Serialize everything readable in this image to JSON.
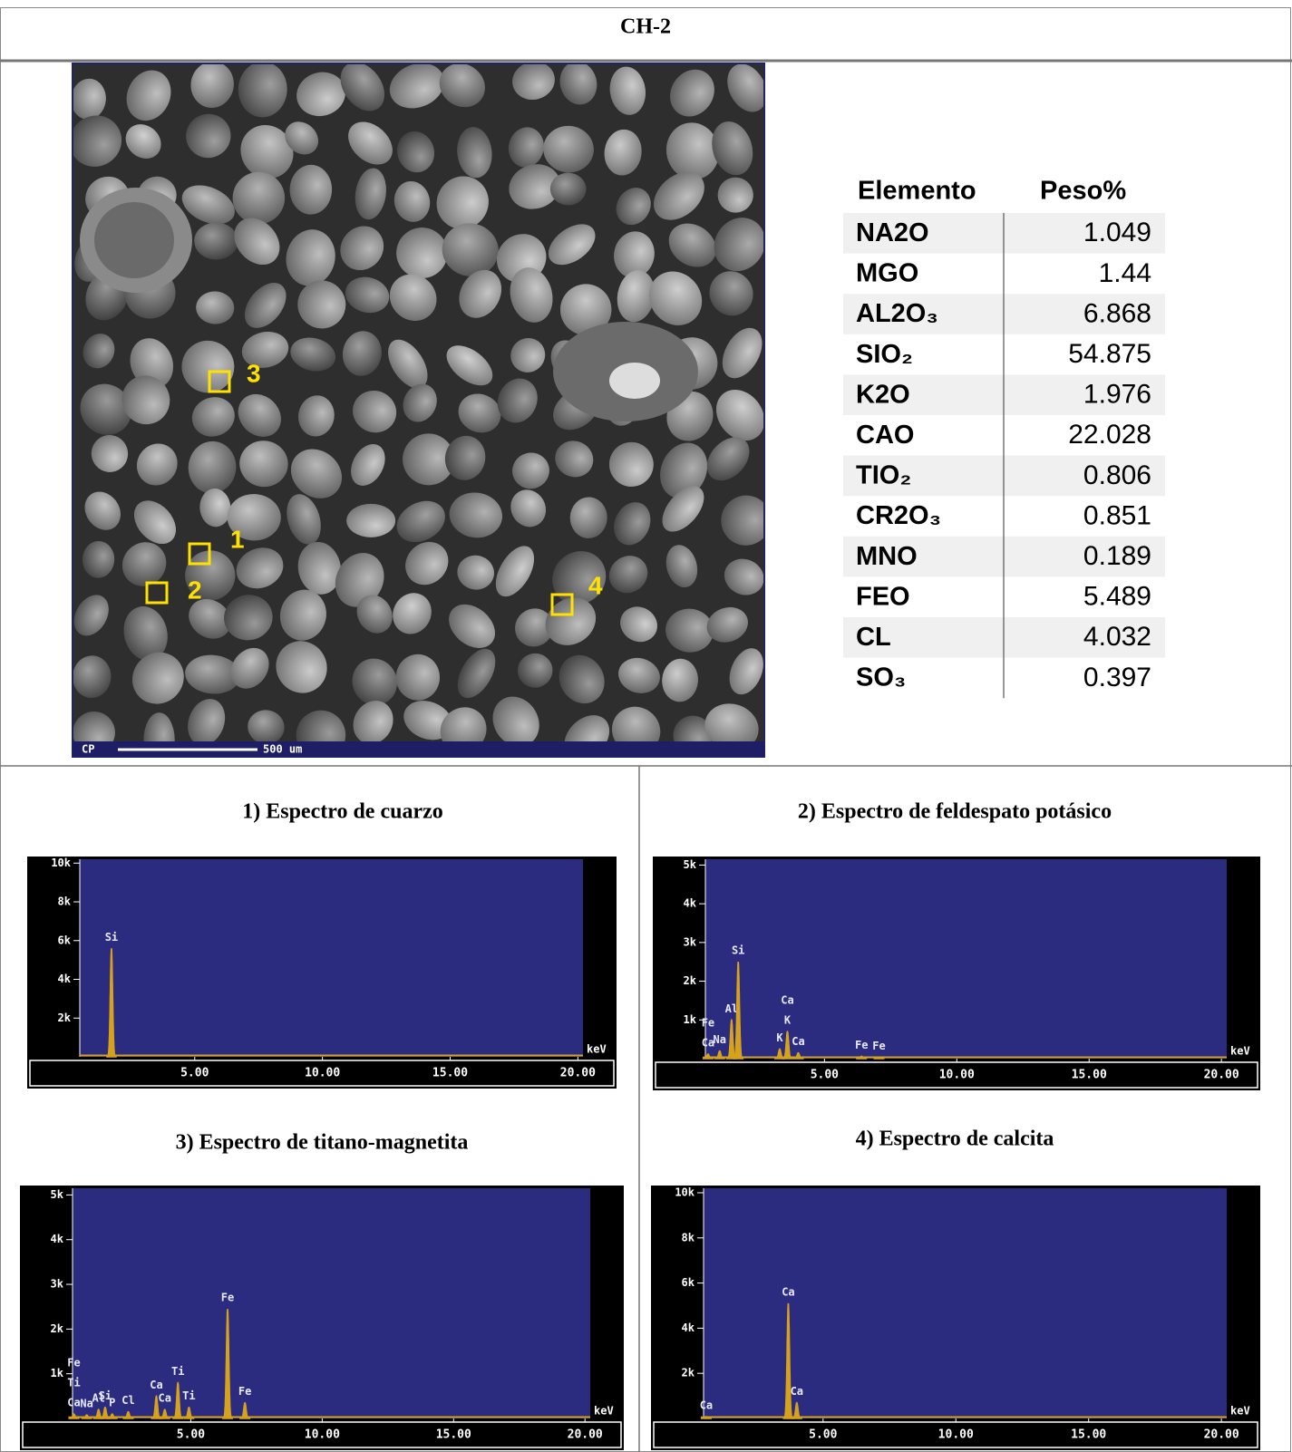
{
  "header": {
    "title": "CH-2"
  },
  "image": {
    "markers": [
      "1",
      "2",
      "3",
      "4"
    ],
    "bar_left": "CP",
    "scale": "500 um"
  },
  "table": {
    "columns": [
      "Elemento",
      "Peso%"
    ],
    "rows": [
      [
        "NA2O",
        1.049
      ],
      [
        "MGO",
        1.44
      ],
      [
        "AL2O₃",
        6.868
      ],
      [
        "SIO₂",
        54.875
      ],
      [
        "K2O",
        1.976
      ],
      [
        "CAO",
        22.028
      ],
      [
        "TIO₂",
        0.806
      ],
      [
        "CR2O₃",
        0.851
      ],
      [
        "MNO",
        0.189
      ],
      [
        "FEO",
        5.489
      ],
      [
        "CL",
        4.032
      ],
      [
        "SO₃",
        0.397
      ]
    ]
  },
  "spectra": [
    {
      "title": "1) Espectro de cuarzo",
      "unit": "keV",
      "xlim": [
        0.5,
        20.2
      ],
      "ylim": [
        0,
        10200
      ],
      "yticks": [
        {
          "value": 2000,
          "label": "2k"
        },
        {
          "value": 4000,
          "label": "4k"
        },
        {
          "value": 6000,
          "label": "6k"
        },
        {
          "value": 8000,
          "label": "8k"
        },
        {
          "value": 10000,
          "label": "10k"
        }
      ],
      "xticks": [
        {
          "value": 5,
          "label": "5.00"
        },
        {
          "value": 10,
          "label": "10.00"
        },
        {
          "value": 15,
          "label": "15.00"
        },
        {
          "value": 20,
          "label": "20.00"
        }
      ],
      "peaks": [
        {
          "x": 1.74,
          "y": 5600,
          "labels": [
            "Si"
          ]
        }
      ]
    },
    {
      "title": "2) Espectro de feldespato potásico",
      "unit": "keV",
      "xlim": [
        0.5,
        20.2
      ],
      "ylim": [
        0,
        5150
      ],
      "yticks": [
        {
          "value": 1000,
          "label": "1k"
        },
        {
          "value": 2000,
          "label": "2k"
        },
        {
          "value": 3000,
          "label": "3k"
        },
        {
          "value": 4000,
          "label": "4k"
        },
        {
          "value": 5000,
          "label": "5k"
        }
      ],
      "xticks": [
        {
          "value": 5,
          "label": "5.00"
        },
        {
          "value": 10,
          "label": "10.00"
        },
        {
          "value": 15,
          "label": "15.00"
        },
        {
          "value": 20,
          "label": "20.00"
        }
      ],
      "peaks": [
        {
          "x": 0.6,
          "y": 120,
          "labels": [
            "Fe",
            "Ca"
          ]
        },
        {
          "x": 1.04,
          "y": 200,
          "labels": [
            "Na"
          ]
        },
        {
          "x": 1.49,
          "y": 1000,
          "labels": [
            "Al"
          ]
        },
        {
          "x": 1.74,
          "y": 2500,
          "labels": [
            "Si"
          ]
        },
        {
          "x": 3.31,
          "y": 250,
          "labels": [
            "K"
          ]
        },
        {
          "x": 3.6,
          "y": 700,
          "labels": [
            "Ca",
            "K"
          ]
        },
        {
          "x": 4.01,
          "y": 150,
          "labels": [
            "Ca"
          ]
        },
        {
          "x": 6.4,
          "y": 60,
          "labels": [
            "Fe"
          ]
        },
        {
          "x": 7.06,
          "y": 40,
          "labels": [
            "Fe"
          ]
        }
      ]
    },
    {
      "title": "3) Espectro de titano-magnetita",
      "unit": "keV",
      "xlim": [
        0.5,
        20.2
      ],
      "ylim": [
        0,
        5150
      ],
      "yticks": [
        {
          "value": 1000,
          "label": "1k"
        },
        {
          "value": 2000,
          "label": "2k"
        },
        {
          "value": 3000,
          "label": "3k"
        },
        {
          "value": 4000,
          "label": "4k"
        },
        {
          "value": 5000,
          "label": "5k"
        }
      ],
      "xticks": [
        {
          "value": 5,
          "label": "5.00"
        },
        {
          "value": 10,
          "label": "10.00"
        },
        {
          "value": 15,
          "label": "15.00"
        },
        {
          "value": 20,
          "label": "20.00"
        }
      ],
      "peaks": [
        {
          "x": 0.55,
          "y": 100,
          "labels": [
            "Fe",
            "Ti",
            "Ca"
          ]
        },
        {
          "x": 1.04,
          "y": 80,
          "labels": [
            "Na"
          ]
        },
        {
          "x": 1.49,
          "y": 200,
          "labels": [
            "Al"
          ]
        },
        {
          "x": 1.74,
          "y": 250,
          "labels": [
            "Si"
          ]
        },
        {
          "x": 2.01,
          "y": 100,
          "labels": [
            "P"
          ]
        },
        {
          "x": 2.62,
          "y": 150,
          "labels": [
            "Cl"
          ]
        },
        {
          "x": 3.69,
          "y": 500,
          "labels": [
            "Ca"
          ]
        },
        {
          "x": 4.01,
          "y": 200,
          "labels": [
            "Ca"
          ]
        },
        {
          "x": 4.51,
          "y": 800,
          "labels": [
            "Ti"
          ]
        },
        {
          "x": 4.93,
          "y": 250,
          "labels": [
            "Ti"
          ]
        },
        {
          "x": 6.4,
          "y": 2450,
          "labels": [
            "Fe"
          ]
        },
        {
          "x": 7.06,
          "y": 350,
          "labels": [
            "Fe"
          ]
        }
      ]
    },
    {
      "title": "4) Espectro de calcita",
      "unit": "keV",
      "xlim": [
        0.5,
        20.2
      ],
      "ylim": [
        0,
        10200
      ],
      "yticks": [
        {
          "value": 2000,
          "label": "2k"
        },
        {
          "value": 4000,
          "label": "4k"
        },
        {
          "value": 6000,
          "label": "6k"
        },
        {
          "value": 8000,
          "label": "8k"
        },
        {
          "value": 10000,
          "label": "10k"
        }
      ],
      "xticks": [
        {
          "value": 5,
          "label": "5.00"
        },
        {
          "value": 10,
          "label": "10.00"
        },
        {
          "value": 15,
          "label": "15.00"
        },
        {
          "value": 20,
          "label": "20.00"
        }
      ],
      "peaks": [
        {
          "x": 0.6,
          "y": 80,
          "labels": [
            "Ca"
          ]
        },
        {
          "x": 3.69,
          "y": 5100,
          "labels": [
            "Ca"
          ]
        },
        {
          "x": 4.01,
          "y": 700,
          "labels": [
            "Ca"
          ]
        }
      ]
    }
  ]
}
